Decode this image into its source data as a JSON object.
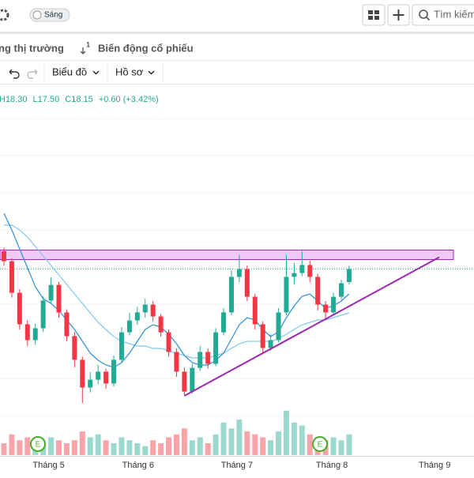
{
  "toolbar": {
    "theme": "Sáng",
    "search": "Tìm kiếm"
  },
  "tabs": [
    "ng thị trường",
    "Biến động cổ phiếu"
  ],
  "menus": [
    "Biểu đồ",
    "Hồ sơ"
  ],
  "ohlc": {
    "high": "H18.30",
    "low": "L17.50",
    "close": "C18.15",
    "change": "+0.60 (+3.42%)"
  },
  "chart_data": {
    "type": "candlestick",
    "ylim": [
      11.5,
      25
    ],
    "colors": {
      "up": "#22ab94",
      "down": "#f23645",
      "ma_fast": "#2b8fd6",
      "ma_slow": "#7ec8ee",
      "zone": "#e8b4f0",
      "trend": "#9c27b0"
    },
    "candles": [
      {
        "o": 18.9,
        "h": 19.05,
        "l": 18.3,
        "c": 18.48
      },
      {
        "o": 18.48,
        "h": 18.6,
        "l": 16.95,
        "c": 17.15
      },
      {
        "o": 17.15,
        "h": 17.3,
        "l": 15.6,
        "c": 15.82
      },
      {
        "o": 15.82,
        "h": 16.0,
        "l": 14.9,
        "c": 15.15
      },
      {
        "o": 15.15,
        "h": 15.85,
        "l": 14.95,
        "c": 15.65
      },
      {
        "o": 15.65,
        "h": 17.0,
        "l": 15.5,
        "c": 16.82
      },
      {
        "o": 16.82,
        "h": 17.8,
        "l": 16.7,
        "c": 17.48
      },
      {
        "o": 17.48,
        "h": 17.6,
        "l": 16.1,
        "c": 16.32
      },
      {
        "o": 16.32,
        "h": 16.45,
        "l": 15.1,
        "c": 15.32
      },
      {
        "o": 15.32,
        "h": 15.5,
        "l": 14.0,
        "c": 14.32
      },
      {
        "o": 14.32,
        "h": 14.45,
        "l": 12.5,
        "c": 13.15
      },
      {
        "o": 13.15,
        "h": 13.8,
        "l": 12.95,
        "c": 13.48
      },
      {
        "o": 13.48,
        "h": 14.1,
        "l": 13.3,
        "c": 13.82
      },
      {
        "o": 13.82,
        "h": 13.95,
        "l": 13.1,
        "c": 13.32
      },
      {
        "o": 13.32,
        "h": 14.5,
        "l": 13.2,
        "c": 14.32
      },
      {
        "o": 14.32,
        "h": 15.7,
        "l": 14.2,
        "c": 15.48
      },
      {
        "o": 15.48,
        "h": 16.3,
        "l": 15.35,
        "c": 15.98
      },
      {
        "o": 15.98,
        "h": 16.55,
        "l": 15.8,
        "c": 16.32
      },
      {
        "o": 16.32,
        "h": 16.9,
        "l": 16.1,
        "c": 16.65
      },
      {
        "o": 16.65,
        "h": 16.8,
        "l": 15.95,
        "c": 16.15
      },
      {
        "o": 16.15,
        "h": 16.25,
        "l": 15.3,
        "c": 15.48
      },
      {
        "o": 15.48,
        "h": 15.6,
        "l": 14.45,
        "c": 14.65
      },
      {
        "o": 14.65,
        "h": 14.8,
        "l": 13.6,
        "c": 13.82
      },
      {
        "o": 13.82,
        "h": 14.0,
        "l": 12.85,
        "c": 12.98
      },
      {
        "o": 12.98,
        "h": 14.15,
        "l": 12.9,
        "c": 13.98
      },
      {
        "o": 13.98,
        "h": 14.9,
        "l": 13.85,
        "c": 14.65
      },
      {
        "o": 14.65,
        "h": 14.8,
        "l": 13.95,
        "c": 14.15
      },
      {
        "o": 14.15,
        "h": 15.65,
        "l": 14.05,
        "c": 15.48
      },
      {
        "o": 15.48,
        "h": 16.5,
        "l": 15.35,
        "c": 16.32
      },
      {
        "o": 16.32,
        "h": 18.1,
        "l": 16.2,
        "c": 17.82
      },
      {
        "o": 17.82,
        "h": 18.75,
        "l": 17.6,
        "c": 18.15
      },
      {
        "o": 18.15,
        "h": 18.3,
        "l": 16.8,
        "c": 16.98
      },
      {
        "o": 16.98,
        "h": 17.1,
        "l": 15.6,
        "c": 15.82
      },
      {
        "o": 15.82,
        "h": 15.95,
        "l": 14.55,
        "c": 14.82
      },
      {
        "o": 14.82,
        "h": 15.4,
        "l": 14.7,
        "c": 15.15
      },
      {
        "o": 15.15,
        "h": 16.5,
        "l": 15.05,
        "c": 16.32
      },
      {
        "o": 16.32,
        "h": 18.75,
        "l": 16.2,
        "c": 17.82
      },
      {
        "o": 17.82,
        "h": 18.4,
        "l": 17.5,
        "c": 17.98
      },
      {
        "o": 17.98,
        "h": 18.9,
        "l": 17.85,
        "c": 18.32
      },
      {
        "o": 18.32,
        "h": 18.5,
        "l": 17.6,
        "c": 17.82
      },
      {
        "o": 17.82,
        "h": 17.95,
        "l": 16.4,
        "c": 16.65
      },
      {
        "o": 16.65,
        "h": 16.8,
        "l": 16.05,
        "c": 16.32
      },
      {
        "o": 16.32,
        "h": 17.15,
        "l": 16.2,
        "c": 16.98
      },
      {
        "o": 16.98,
        "h": 17.7,
        "l": 16.85,
        "c": 17.55
      },
      {
        "o": 17.6,
        "h": 18.3,
        "l": 17.5,
        "c": 18.15
      }
    ],
    "ma_fast": [
      20.5,
      19.8,
      19.0,
      18.2,
      17.4,
      16.9,
      16.7,
      16.4,
      16.0,
      15.6,
      15.1,
      14.6,
      14.3,
      14.1,
      14.0,
      14.2,
      14.6,
      15.1,
      15.6,
      15.8,
      15.7,
      15.4,
      15.0,
      14.5,
      14.2,
      14.1,
      14.1,
      14.3,
      14.6,
      15.2,
      15.8,
      16.1,
      16.0,
      15.6,
      15.3,
      15.5,
      16.1,
      16.6,
      17.0,
      17.1,
      16.8,
      16.5,
      16.6,
      16.8,
      17.1
    ],
    "ma_slow": [
      20.0,
      20.0,
      19.8,
      19.5,
      19.1,
      18.7,
      18.3,
      17.9,
      17.5,
      17.1,
      16.7,
      16.3,
      15.9,
      15.6,
      15.3,
      15.1,
      15.0,
      14.9,
      14.9,
      14.8,
      14.8,
      14.7,
      14.6,
      14.5,
      14.4,
      14.4,
      14.4,
      14.5,
      14.6,
      14.8,
      15.0,
      15.1,
      15.1,
      15.1,
      15.1,
      15.2,
      15.4,
      15.6,
      15.8,
      15.9,
      16.0,
      16.0,
      16.1,
      16.2,
      16.3
    ],
    "volume_ylim": [
      0,
      100
    ],
    "volumes": [
      20,
      35,
      25,
      30,
      15,
      20,
      30,
      25,
      20,
      25,
      40,
      30,
      35,
      25,
      20,
      30,
      25,
      20,
      15,
      25,
      20,
      30,
      35,
      45,
      25,
      30,
      20,
      35,
      55,
      45,
      60,
      40,
      35,
      30,
      25,
      40,
      75,
      55,
      50,
      35,
      30,
      25,
      30,
      25,
      35
    ],
    "resistance_zone": [
      18.55,
      18.95
    ],
    "trendline": {
      "from": [
        23,
        12.8
      ],
      "to": [
        55.5,
        18.65
      ]
    },
    "months": [
      {
        "label": "Tháng 5",
        "index": 5.7
      },
      {
        "label": "Tháng 6",
        "index": 17.1
      },
      {
        "label": "Tháng 7",
        "index": 29.7
      },
      {
        "label": "Tháng 8",
        "index": 41.8
      },
      {
        "label": "Tháng 9",
        "index": 54.9
      }
    ]
  }
}
